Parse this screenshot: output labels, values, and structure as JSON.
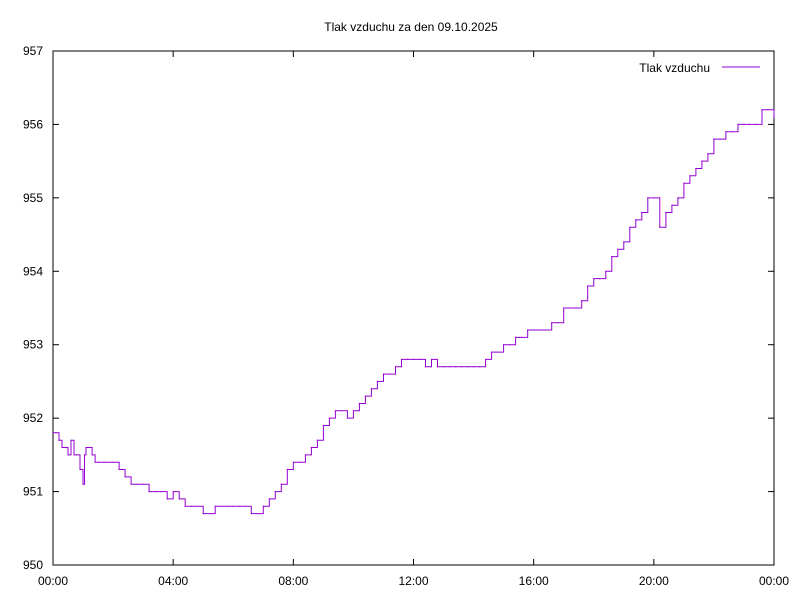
{
  "chart_data": {
    "type": "line",
    "title": "Tlak vzduchu za den 09.10.2025",
    "xlabel": "",
    "ylabel": "",
    "x_unit": "hours",
    "xlim": [
      0,
      24
    ],
    "ylim": [
      950,
      957
    ],
    "x_ticks": [
      0,
      4,
      8,
      12,
      16,
      20,
      24
    ],
    "x_tick_labels": [
      "00:00",
      "04:00",
      "08:00",
      "12:00",
      "16:00",
      "20:00",
      "00:00"
    ],
    "y_ticks": [
      950,
      951,
      952,
      953,
      954,
      955,
      956,
      957
    ],
    "y_tick_labels": [
      "950",
      "951",
      "952",
      "953",
      "954",
      "955",
      "956",
      "957"
    ],
    "grid": false,
    "legend_position": "top-right",
    "series": [
      {
        "name": "Tlak vzduchu",
        "color": "#9400d3",
        "x": [
          0.0,
          0.1,
          0.2,
          0.3,
          0.4,
          0.5,
          0.6,
          0.7,
          0.8,
          0.9,
          1.0,
          1.05,
          1.1,
          1.2,
          1.3,
          1.4,
          1.5,
          1.7,
          2.0,
          2.2,
          2.4,
          2.6,
          2.8,
          3.0,
          3.2,
          3.4,
          3.6,
          3.8,
          4.0,
          4.2,
          4.4,
          4.6,
          4.8,
          5.0,
          5.2,
          5.4,
          5.6,
          5.8,
          6.0,
          6.2,
          6.4,
          6.6,
          6.8,
          7.0,
          7.2,
          7.4,
          7.6,
          7.8,
          8.0,
          8.2,
          8.4,
          8.6,
          8.8,
          9.0,
          9.2,
          9.4,
          9.6,
          9.8,
          10.0,
          10.2,
          10.4,
          10.6,
          10.8,
          11.0,
          11.2,
          11.4,
          11.6,
          11.8,
          12.0,
          12.2,
          12.4,
          12.6,
          12.8,
          13.0,
          13.2,
          13.4,
          13.6,
          13.8,
          14.0,
          14.2,
          14.4,
          14.6,
          14.8,
          15.0,
          15.2,
          15.4,
          15.6,
          15.8,
          16.0,
          16.2,
          16.4,
          16.6,
          16.8,
          17.0,
          17.2,
          17.4,
          17.6,
          17.8,
          18.0,
          18.2,
          18.4,
          18.6,
          18.8,
          19.0,
          19.2,
          19.4,
          19.6,
          19.8,
          20.0,
          20.2,
          20.4,
          20.6,
          20.8,
          21.0,
          21.2,
          21.4,
          21.6,
          21.8,
          22.0,
          22.2,
          22.4,
          22.6,
          22.8,
          23.0,
          23.2,
          23.4,
          23.6,
          23.8,
          24.0
        ],
        "values": [
          951.8,
          951.8,
          951.7,
          951.6,
          951.6,
          951.5,
          951.7,
          951.5,
          951.5,
          951.3,
          951.1,
          951.5,
          951.6,
          951.6,
          951.5,
          951.4,
          951.4,
          951.4,
          951.4,
          951.3,
          951.2,
          951.1,
          951.1,
          951.1,
          951.0,
          951.0,
          951.0,
          950.9,
          951.0,
          950.9,
          950.8,
          950.8,
          950.8,
          950.7,
          950.7,
          950.8,
          950.8,
          950.8,
          950.8,
          950.8,
          950.8,
          950.7,
          950.7,
          950.8,
          950.9,
          951.0,
          951.1,
          951.3,
          951.4,
          951.4,
          951.5,
          951.6,
          951.7,
          951.9,
          952.0,
          952.1,
          952.1,
          952.0,
          952.1,
          952.2,
          952.3,
          952.4,
          952.5,
          952.6,
          952.6,
          952.7,
          952.8,
          952.8,
          952.8,
          952.8,
          952.7,
          952.8,
          952.7,
          952.7,
          952.7,
          952.7,
          952.7,
          952.7,
          952.7,
          952.7,
          952.8,
          952.9,
          952.9,
          953.0,
          953.0,
          953.1,
          953.1,
          953.2,
          953.2,
          953.2,
          953.2,
          953.3,
          953.3,
          953.5,
          953.5,
          953.5,
          953.6,
          953.8,
          953.9,
          953.9,
          954.0,
          954.2,
          954.3,
          954.4,
          954.6,
          954.7,
          954.8,
          955.0,
          955.0,
          954.6,
          954.8,
          954.9,
          955.0,
          955.2,
          955.3,
          955.4,
          955.5,
          955.6,
          955.8,
          955.8,
          955.9,
          955.9,
          956.0,
          956.0,
          956.0,
          956.0,
          956.2,
          956.2,
          956.1
        ]
      }
    ]
  }
}
